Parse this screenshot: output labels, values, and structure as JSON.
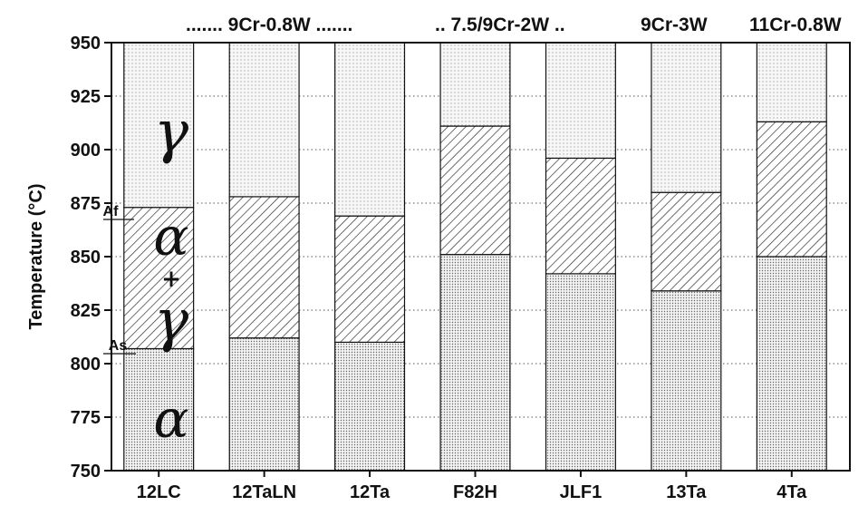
{
  "chart_data": {
    "type": "bar",
    "ylabel": "Temperature (°C)",
    "ylim": [
      750,
      950
    ],
    "yticks": [
      750,
      775,
      800,
      825,
      850,
      875,
      900,
      925,
      950
    ],
    "grid": true,
    "categories": [
      "12LC",
      "12TaLN",
      "12Ta",
      "F82H",
      "JLF1",
      "13Ta",
      "4Ta"
    ],
    "series": [
      {
        "values": [
          807,
          812,
          810,
          851,
          842,
          834,
          850
        ]
      },
      {
        "values": [
          873,
          878,
          869,
          911,
          896,
          880,
          913
        ]
      }
    ],
    "group_labels": [
      "....... 9Cr-0.8W .......",
      ".. 7.5/9Cr-2W ..",
      "9Cr-3W",
      "11Cr-0.8W"
    ],
    "phase_labels": [
      "γ",
      "α",
      "+",
      "γ",
      "α"
    ],
    "markers": [
      "Af",
      "As"
    ],
    "colors": {
      "alpha": "#d8d8d8",
      "mixed": "#ffffff",
      "gamma": "#ececec",
      "ink": "#111111"
    }
  }
}
